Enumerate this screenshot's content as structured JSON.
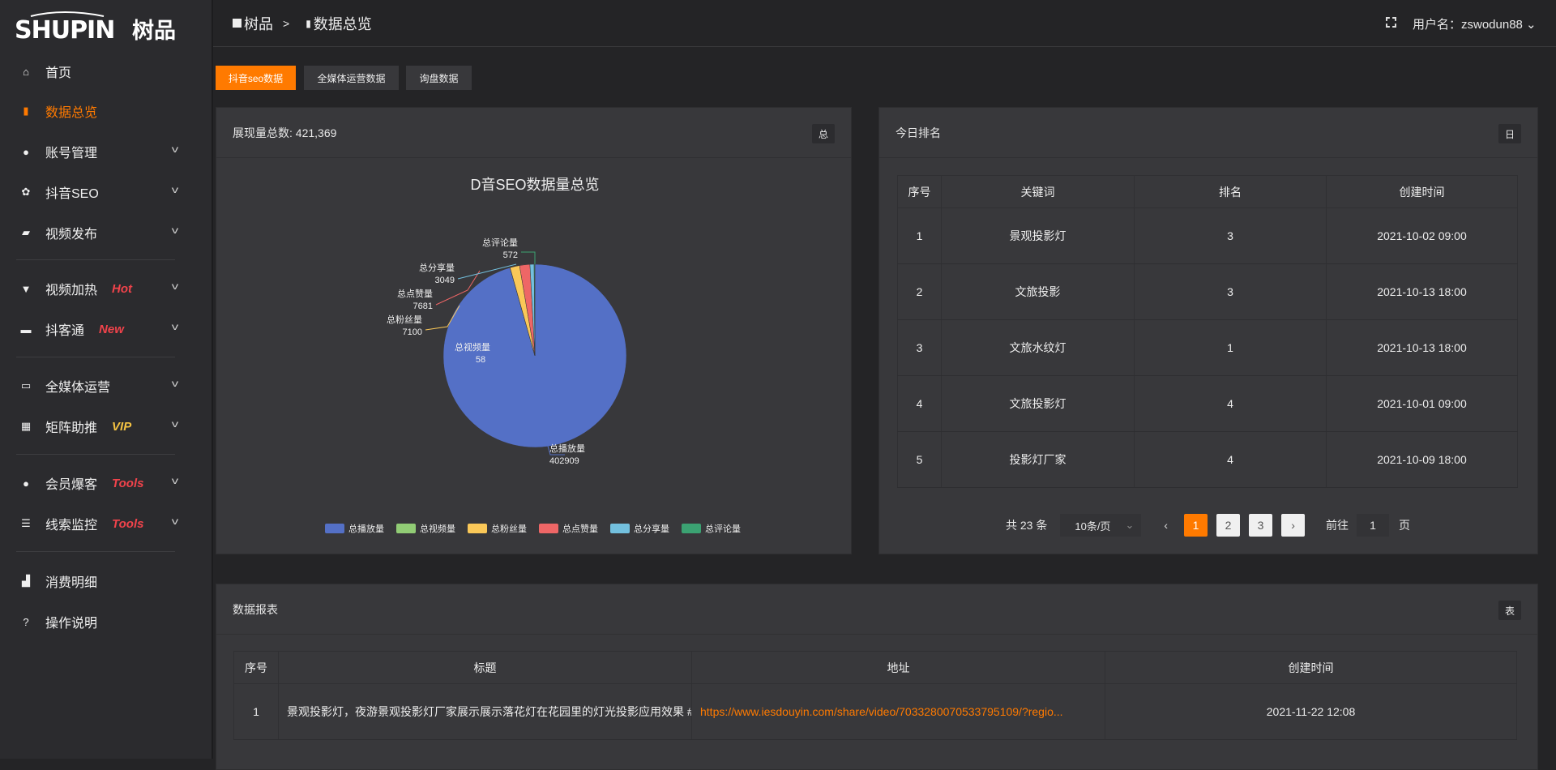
{
  "brand": {
    "logo_text": "SHUPIN 树品"
  },
  "sidebar": {
    "items": [
      {
        "label": "首页",
        "icon": "home-icon"
      },
      {
        "label": "数据总览",
        "icon": "bar-chart-icon",
        "active": true
      },
      {
        "label": "账号管理",
        "icon": "user-icon"
      },
      {
        "label": "抖音SEO",
        "icon": "gear-icon"
      },
      {
        "label": "视频发布",
        "icon": "camera-icon"
      },
      {
        "label": "视频加热",
        "icon": "flame-icon",
        "badge": "Hot"
      },
      {
        "label": "抖客通",
        "icon": "chat-icon",
        "badge": "New"
      },
      {
        "label": "全媒体运营",
        "icon": "monitor-icon"
      },
      {
        "label": "矩阵助推",
        "icon": "grid-icon",
        "badge": "VIP"
      },
      {
        "label": "会员爆客",
        "icon": "user-icon",
        "badge": "Tools"
      },
      {
        "label": "线索监控",
        "icon": "sliders-icon",
        "badge": "Tools"
      },
      {
        "label": "消费明细",
        "icon": "wallet-icon"
      },
      {
        "label": "操作说明",
        "icon": "help-icon"
      }
    ]
  },
  "header": {
    "crumb_home": "树品",
    "crumb_sep": ">",
    "crumb_current": "数据总览",
    "user_label": "用户名：zswodun88"
  },
  "tabs": [
    {
      "label": "抖音seo数据",
      "active": true
    },
    {
      "label": "全媒体运营数据"
    },
    {
      "label": "询盘数据"
    }
  ],
  "colors": {
    "accent": "#ff7a00",
    "hot": "#f0434b",
    "vip": "#f5c342"
  },
  "overview": {
    "title": "展现量总数: 421,369",
    "button": "总"
  },
  "chart_data": {
    "type": "pie",
    "title": "D音SEO数据量总览",
    "legend_position": "bottom",
    "categories": [
      "总播放量",
      "总视频量",
      "总粉丝量",
      "总点赞量",
      "总分享量",
      "总评论量"
    ],
    "values": [
      402909,
      58,
      7100,
      7681,
      3049,
      572
    ],
    "colors": [
      "#5470c6",
      "#91cc75",
      "#fac858",
      "#ee6666",
      "#73c0de",
      "#3ba272"
    ]
  },
  "ranking": {
    "title": "今日排名",
    "button": "日",
    "columns": [
      "序号",
      "关键词",
      "排名",
      "创建时间"
    ],
    "rows": [
      [
        "1",
        "景观投影灯",
        "3",
        "2021-10-02 09:00"
      ],
      [
        "2",
        "文旅投影",
        "3",
        "2021-10-13 18:00"
      ],
      [
        "3",
        "文旅水纹灯",
        "1",
        "2021-10-13 18:00"
      ],
      [
        "4",
        "文旅投影灯",
        "4",
        "2021-10-01 09:00"
      ],
      [
        "5",
        "投影灯厂家",
        "4",
        "2021-10-09 18:00"
      ]
    ],
    "pager": {
      "total": "共 23 条",
      "page_size": "10条/页",
      "pages": [
        "1",
        "2",
        "3"
      ],
      "current": "1",
      "goto_label": "前往",
      "goto_value": "1",
      "page_suffix": "页"
    }
  },
  "report": {
    "title": "数据报表",
    "button": "表",
    "columns": [
      "序号",
      "标题",
      "地址",
      "创建时间"
    ],
    "rows": [
      [
        "1",
        "景观投影灯，夜游景观投影灯厂家展示展示落花灯在花园里的灯光投影应用效果 #",
        "https://www.iesdouyin.com/share/video/7033280070533795109/?regio...",
        "2021-11-22 12:08"
      ]
    ]
  }
}
